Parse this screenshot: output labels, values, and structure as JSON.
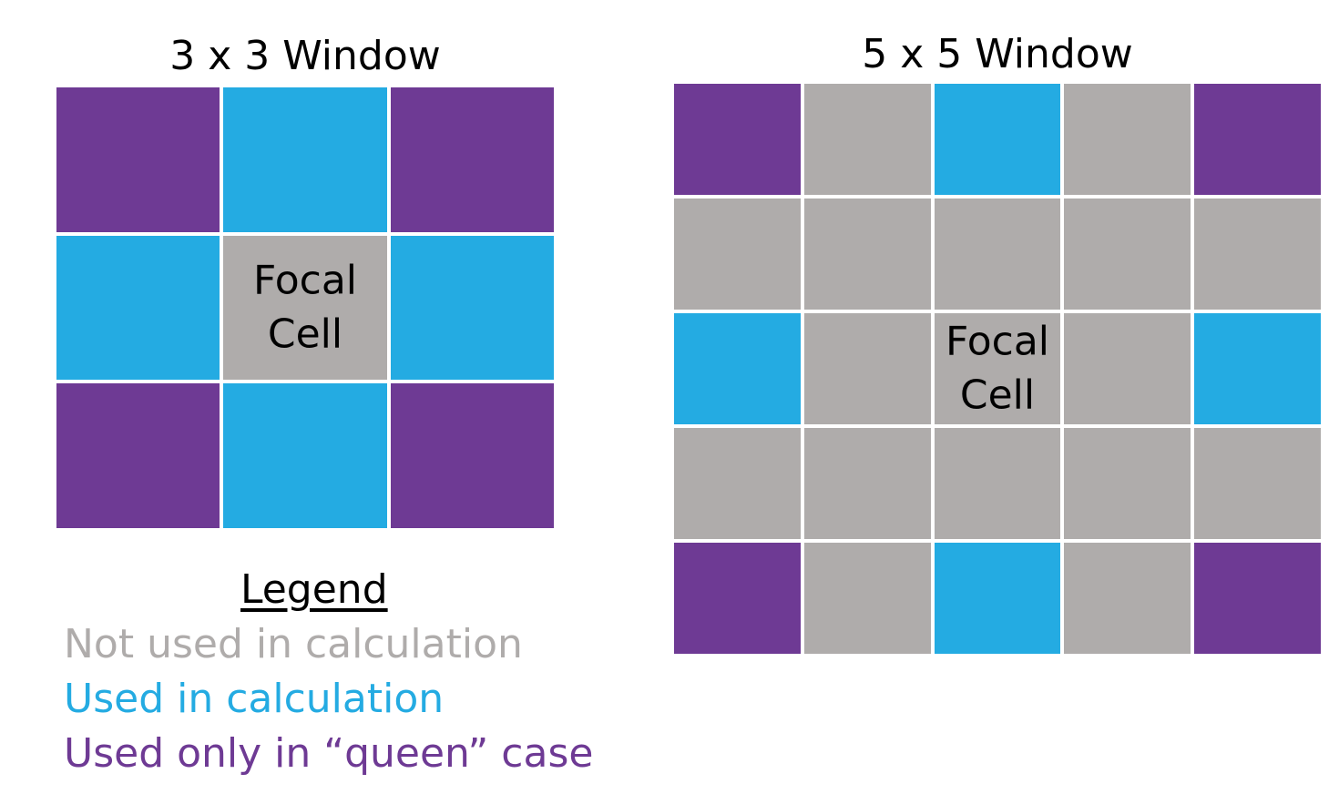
{
  "colors": {
    "not_used": "#afacab",
    "used": "#24abe2",
    "queen": "#6e3a94"
  },
  "window_3x3": {
    "title": "3 x 3 Window",
    "cells": [
      "queen",
      "used",
      "queen",
      "used",
      "not_used",
      "used",
      "queen",
      "used",
      "queen"
    ],
    "focal_index": 4,
    "focal_label": [
      "Focal",
      "Cell"
    ]
  },
  "window_5x5": {
    "title": "5 x 5 Window",
    "cells": [
      "queen",
      "not_used",
      "used",
      "not_used",
      "queen",
      "not_used",
      "not_used",
      "not_used",
      "not_used",
      "not_used",
      "used",
      "not_used",
      "not_used",
      "not_used",
      "used",
      "not_used",
      "not_used",
      "not_used",
      "not_used",
      "not_used",
      "queen",
      "not_used",
      "used",
      "not_used",
      "queen"
    ],
    "focal_index": 12,
    "focal_label": [
      "Focal",
      "Cell"
    ]
  },
  "legend": {
    "title": "Legend",
    "items": [
      {
        "label": "Not used in calculation",
        "color_key": "not_used"
      },
      {
        "label": "Used in calculation",
        "color_key": "used"
      },
      {
        "label": "Used only in “queen” case",
        "color_key": "queen"
      }
    ]
  }
}
